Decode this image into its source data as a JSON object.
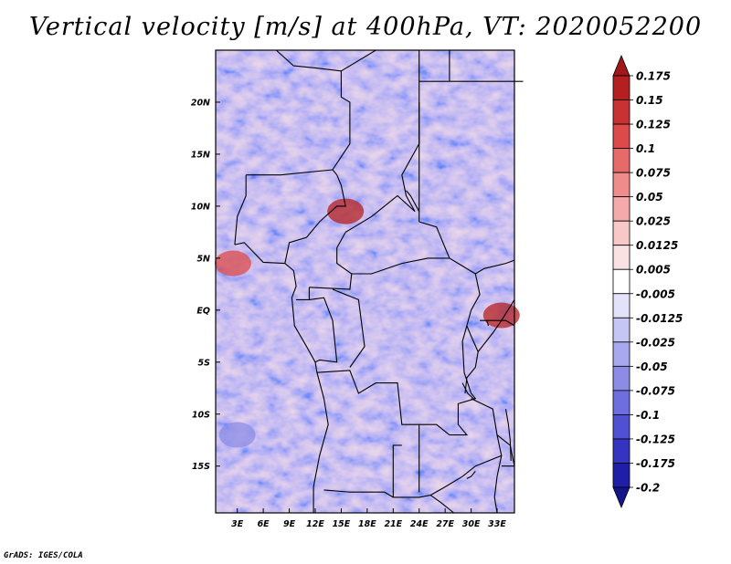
{
  "chart_data": {
    "type": "heatmap",
    "title": "Vertical velocity [m/s] at 400hPa, VT: 2020052200",
    "variable": "Vertical velocity",
    "units": "m/s",
    "level": "400hPa",
    "valid_time": "2020052200",
    "xlabel": "",
    "ylabel": "",
    "x_ticks": [
      "3E",
      "6E",
      "9E",
      "12E",
      "15E",
      "18E",
      "21E",
      "24E",
      "27E",
      "30E",
      "33E"
    ],
    "y_ticks": [
      "20N",
      "15N",
      "10N",
      "5N",
      "EQ",
      "5S",
      "10S",
      "15S"
    ],
    "x_tick_values": [
      3,
      6,
      9,
      12,
      15,
      18,
      21,
      24,
      27,
      30,
      33
    ],
    "y_tick_values": [
      20,
      15,
      10,
      5,
      0,
      -5,
      -10,
      -15
    ],
    "xlim": [
      0.5,
      35.0
    ],
    "ylim": [
      -19.5,
      25.0
    ],
    "grid": false,
    "legend_position": "right",
    "colorbar_labels": [
      "0.175",
      "0.15",
      "0.125",
      "0.1",
      "0.075",
      "0.05",
      "0.025",
      "0.0125",
      "0.005",
      "-0.005",
      "-0.0125",
      "-0.025",
      "-0.05",
      "-0.075",
      "-0.1",
      "-0.125",
      "-0.175",
      "-0.2"
    ],
    "colorbar_colors": [
      "#a01818",
      "#b42020",
      "#c83232",
      "#dc4a4a",
      "#e66a6a",
      "#ee8c8c",
      "#f4aaaa",
      "#f8c8c8",
      "#fbe2e2",
      "#ffffff",
      "#e2e2fa",
      "#c6c6f4",
      "#a8a8ee",
      "#8c8ce6",
      "#6e6ede",
      "#5050d2",
      "#3434c0",
      "#1e1ea6",
      "#14148c"
    ],
    "features": [
      {
        "name": "strong ascent over Cameroon-Chad border",
        "lon": 15.5,
        "lat": 9.5,
        "value": 0.15
      },
      {
        "name": "strong ascent over Lake Victoria region",
        "lon": 33.5,
        "lat": -0.5,
        "value": 0.15
      },
      {
        "name": "ascent over Gulf of Guinea",
        "lon": 2.5,
        "lat": 4.5,
        "value": 0.1
      },
      {
        "name": "descent over southern Atlantic",
        "lon": 3.0,
        "lat": -12.0,
        "value": -0.05
      }
    ]
  },
  "footer": "GrADS: IGES/COLA"
}
